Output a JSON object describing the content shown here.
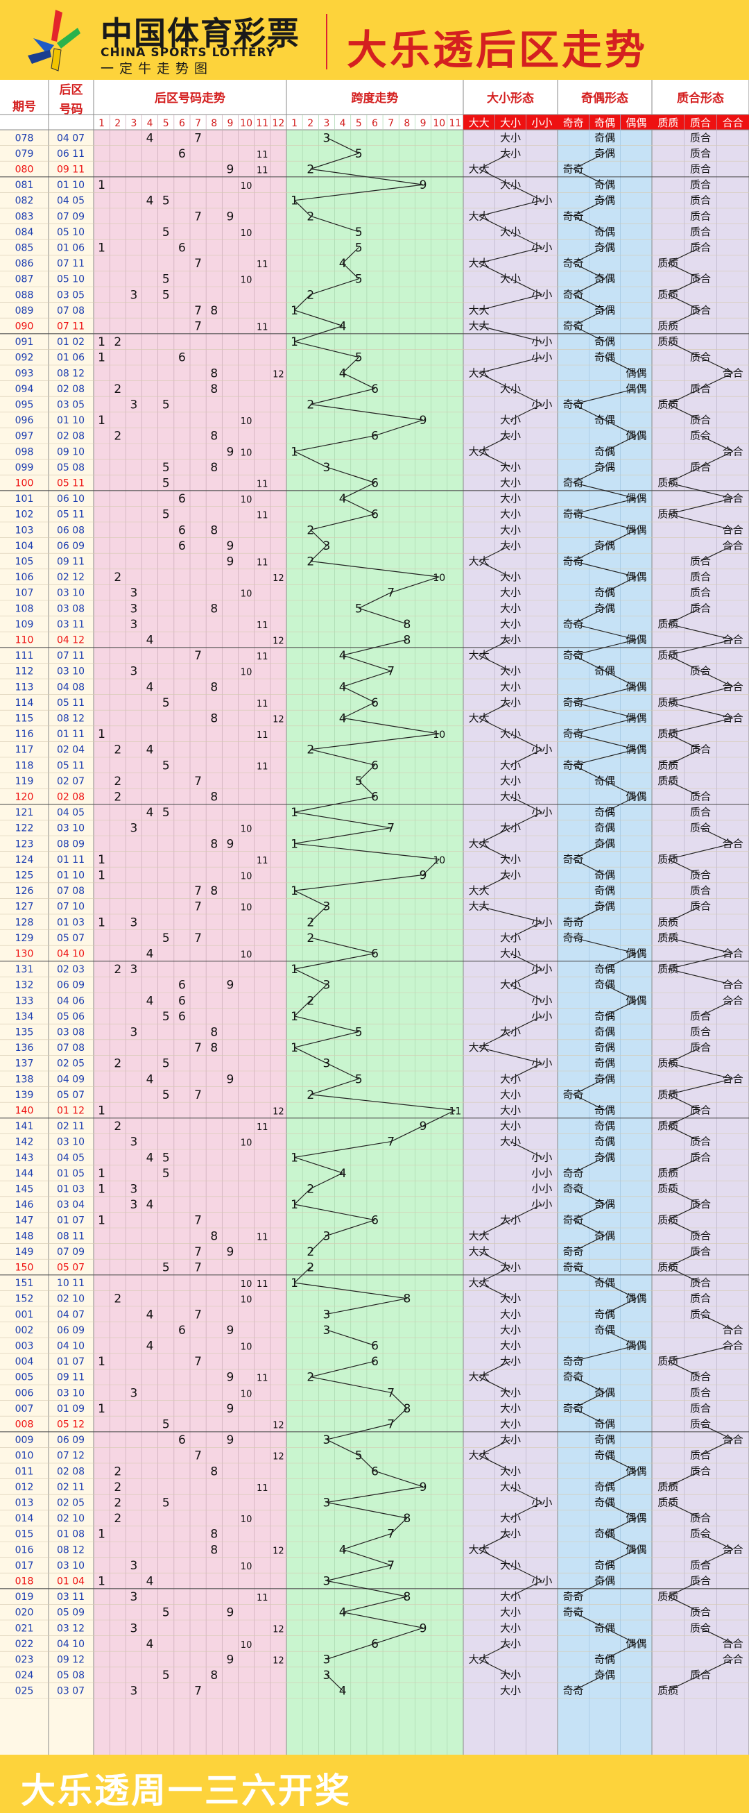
{
  "header": {
    "logo_cn": "中国体育彩票",
    "logo_en": "CHINA SPORTS LOTTERY",
    "logo_sub": "一定牛走势图",
    "title": "大乐透后区走势"
  },
  "footer": {
    "text": "大乐透周一三六开奖"
  },
  "colors": {
    "background": "#fdd33b",
    "title_red": "#d42020",
    "zone_pink": "#f6d6e3",
    "zone_green": "#c9f5cf",
    "zone_purple": "#e3dcef",
    "zone_blue": "#c6e2f6",
    "issue_blue": "#1a3cb0",
    "highlight_red": "#e11"
  },
  "chart_data": {
    "type": "table",
    "columns": {
      "period": "期号",
      "back_zone": "后区号码",
      "back_trend": "后区号码走势",
      "span_trend": "跨度走势",
      "size_shape": "大小形态",
      "odd_even_shape": "奇偶形态",
      "prime_composite_shape": "质合形态"
    },
    "ball_labels": [
      "1",
      "2",
      "3",
      "4",
      "5",
      "6",
      "7",
      "8",
      "9",
      "10",
      "11",
      "12"
    ],
    "span_labels": [
      "1",
      "2",
      "3",
      "4",
      "5",
      "6",
      "7",
      "8",
      "9",
      "10",
      "11"
    ],
    "size_labels": [
      "大大",
      "大小",
      "小小"
    ],
    "odd_even_labels": [
      "奇奇",
      "奇偶",
      "偶偶"
    ],
    "prime_labels": [
      "质质",
      "质合",
      "合合"
    ],
    "rows": [
      {
        "issue": "078",
        "nums": "04 07"
      },
      {
        "issue": "079",
        "nums": "06 11"
      },
      {
        "issue": "080",
        "nums": "09 11"
      },
      {
        "issue": "081",
        "nums": "01 10"
      },
      {
        "issue": "082",
        "nums": "04 05"
      },
      {
        "issue": "083",
        "nums": "07 09"
      },
      {
        "issue": "084",
        "nums": "05 10"
      },
      {
        "issue": "085",
        "nums": "01 06"
      },
      {
        "issue": "086",
        "nums": "07 11"
      },
      {
        "issue": "087",
        "nums": "05 10"
      },
      {
        "issue": "088",
        "nums": "03 05"
      },
      {
        "issue": "089",
        "nums": "07 08"
      },
      {
        "issue": "090",
        "nums": "07 11"
      },
      {
        "issue": "091",
        "nums": "01 02"
      },
      {
        "issue": "092",
        "nums": "01 06"
      },
      {
        "issue": "093",
        "nums": "08 12"
      },
      {
        "issue": "094",
        "nums": "02 08"
      },
      {
        "issue": "095",
        "nums": "03 05"
      },
      {
        "issue": "096",
        "nums": "01 10"
      },
      {
        "issue": "097",
        "nums": "02 08"
      },
      {
        "issue": "098",
        "nums": "09 10"
      },
      {
        "issue": "099",
        "nums": "05 08"
      },
      {
        "issue": "100",
        "nums": "05 11"
      },
      {
        "issue": "101",
        "nums": "06 10"
      },
      {
        "issue": "102",
        "nums": "05 11"
      },
      {
        "issue": "103",
        "nums": "06 08"
      },
      {
        "issue": "104",
        "nums": "06 09"
      },
      {
        "issue": "105",
        "nums": "09 11"
      },
      {
        "issue": "106",
        "nums": "02 12"
      },
      {
        "issue": "107",
        "nums": "03 10"
      },
      {
        "issue": "108",
        "nums": "03 08"
      },
      {
        "issue": "109",
        "nums": "03 11"
      },
      {
        "issue": "110",
        "nums": "04 12"
      },
      {
        "issue": "111",
        "nums": "07 11"
      },
      {
        "issue": "112",
        "nums": "03 10"
      },
      {
        "issue": "113",
        "nums": "04 08"
      },
      {
        "issue": "114",
        "nums": "05 11"
      },
      {
        "issue": "115",
        "nums": "08 12"
      },
      {
        "issue": "116",
        "nums": "01 11"
      },
      {
        "issue": "117",
        "nums": "02 04"
      },
      {
        "issue": "118",
        "nums": "05 11"
      },
      {
        "issue": "119",
        "nums": "02 07"
      },
      {
        "issue": "120",
        "nums": "02 08"
      },
      {
        "issue": "121",
        "nums": "04 05"
      },
      {
        "issue": "122",
        "nums": "03 10"
      },
      {
        "issue": "123",
        "nums": "08 09"
      },
      {
        "issue": "124",
        "nums": "01 11"
      },
      {
        "issue": "125",
        "nums": "01 10"
      },
      {
        "issue": "126",
        "nums": "07 08"
      },
      {
        "issue": "127",
        "nums": "07 10"
      },
      {
        "issue": "128",
        "nums": "01 03"
      },
      {
        "issue": "129",
        "nums": "05 07"
      },
      {
        "issue": "130",
        "nums": "04 10"
      },
      {
        "issue": "131",
        "nums": "02 03"
      },
      {
        "issue": "132",
        "nums": "06 09"
      },
      {
        "issue": "133",
        "nums": "04 06"
      },
      {
        "issue": "134",
        "nums": "05 06"
      },
      {
        "issue": "135",
        "nums": "03 08"
      },
      {
        "issue": "136",
        "nums": "07 08"
      },
      {
        "issue": "137",
        "nums": "02 05"
      },
      {
        "issue": "138",
        "nums": "04 09"
      },
      {
        "issue": "139",
        "nums": "05 07"
      },
      {
        "issue": "140",
        "nums": "01 12"
      },
      {
        "issue": "141",
        "nums": "02 11"
      },
      {
        "issue": "142",
        "nums": "03 10"
      },
      {
        "issue": "143",
        "nums": "04 05"
      },
      {
        "issue": "144",
        "nums": "01 05"
      },
      {
        "issue": "145",
        "nums": "01 03"
      },
      {
        "issue": "146",
        "nums": "03 04"
      },
      {
        "issue": "147",
        "nums": "01 07"
      },
      {
        "issue": "148",
        "nums": "08 11"
      },
      {
        "issue": "149",
        "nums": "07 09"
      },
      {
        "issue": "150",
        "nums": "05 07"
      },
      {
        "issue": "151",
        "nums": "10 11"
      },
      {
        "issue": "152",
        "nums": "02 10"
      },
      {
        "issue": "001",
        "nums": "04 07"
      },
      {
        "issue": "002",
        "nums": "06 09"
      },
      {
        "issue": "003",
        "nums": "04 10"
      },
      {
        "issue": "004",
        "nums": "01 07"
      },
      {
        "issue": "005",
        "nums": "09 11"
      },
      {
        "issue": "006",
        "nums": "03 10"
      },
      {
        "issue": "007",
        "nums": "01 09"
      },
      {
        "issue": "008",
        "nums": "05 12"
      },
      {
        "issue": "009",
        "nums": "06 09"
      },
      {
        "issue": "010",
        "nums": "07 12"
      },
      {
        "issue": "011",
        "nums": "02 08"
      },
      {
        "issue": "012",
        "nums": "02 11"
      },
      {
        "issue": "013",
        "nums": "02 05"
      },
      {
        "issue": "014",
        "nums": "02 10"
      },
      {
        "issue": "015",
        "nums": "01 08"
      },
      {
        "issue": "016",
        "nums": "08 12"
      },
      {
        "issue": "017",
        "nums": "03 10"
      },
      {
        "issue": "018",
        "nums": "01 04"
      },
      {
        "issue": "019",
        "nums": "03 11"
      },
      {
        "issue": "020",
        "nums": "05 09"
      },
      {
        "issue": "021",
        "nums": "03 12"
      },
      {
        "issue": "022",
        "nums": "04 10"
      },
      {
        "issue": "023",
        "nums": "09 12"
      },
      {
        "issue": "024",
        "nums": "05 08"
      },
      {
        "issue": "025",
        "nums": "03 07"
      }
    ]
  }
}
